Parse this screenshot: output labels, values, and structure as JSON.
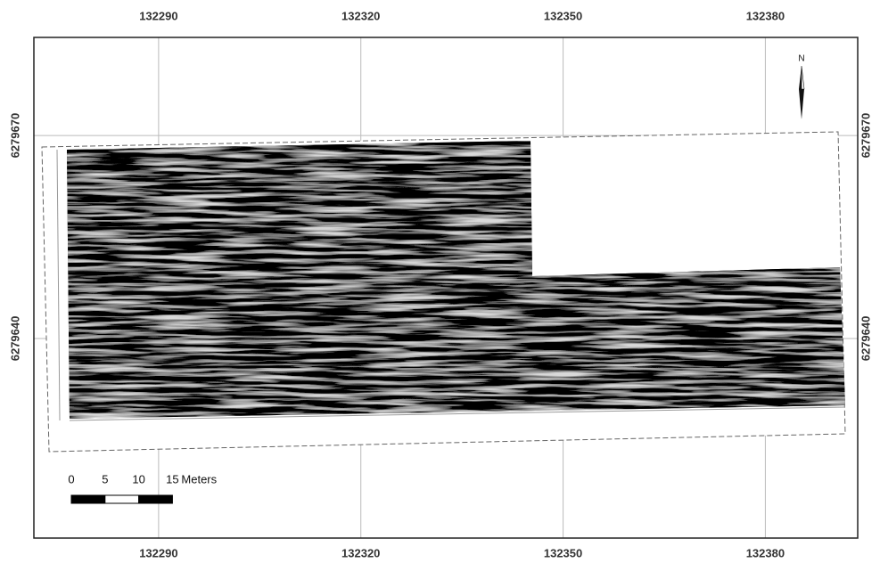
{
  "map": {
    "xlim": [
      132271.5,
      132393.7
    ],
    "ylim": [
      6279610.5,
      6279684.5
    ],
    "xticks": [
      132290,
      132320,
      132350,
      132380
    ],
    "yticks": [
      6279640,
      6279670
    ],
    "north_label": "N",
    "scale_bar": {
      "ticks": [
        0,
        5,
        10,
        15
      ],
      "unit": "Meters"
    }
  }
}
